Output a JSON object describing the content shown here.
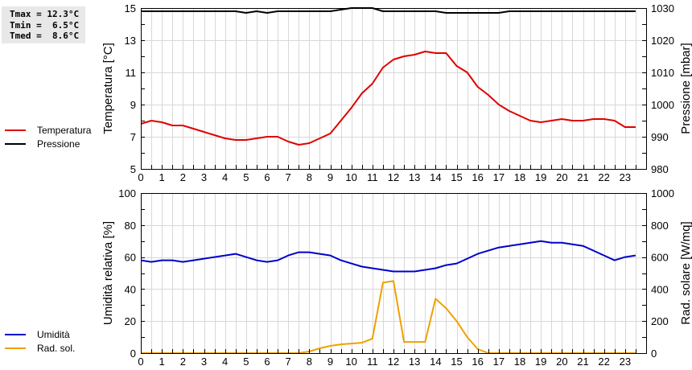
{
  "stats": {
    "tmax_label": "Tmax = 12.3°C",
    "tmin_label": "Tmin =  6.5°C",
    "tmed_label": "Tmed =  8.6°C"
  },
  "legend_top": [
    {
      "label": "Temperatura",
      "color": "#e00000"
    },
    {
      "label": "Pressione",
      "color": "#000000"
    }
  ],
  "legend_bottom": [
    {
      "label": "Umidità",
      "color": "#0000cc"
    },
    {
      "label": "Rad. sol.",
      "color": "#f0a000"
    }
  ],
  "chart_data": [
    {
      "type": "line",
      "title": "",
      "xlabel": "",
      "ylabel": "Temperatura [°C]",
      "y2label": "Pressione [mbar]",
      "xlim": [
        0,
        24
      ],
      "ylim": [
        5,
        15
      ],
      "y2lim": [
        980,
        1030
      ],
      "xticks": [
        "0",
        "1",
        "2",
        "3",
        "4",
        "5",
        "6",
        "7",
        "8",
        "9",
        "10",
        "11",
        "12",
        "13",
        "14",
        "15",
        "16",
        "17",
        "18",
        "19",
        "20",
        "21",
        "22",
        "23"
      ],
      "yticks": [
        "5",
        "7",
        "9",
        "11",
        "13",
        "15"
      ],
      "y2ticks": [
        "980",
        "990",
        "1000",
        "1010",
        "1020",
        "1030"
      ],
      "grid": true,
      "legend_position": "left-outside",
      "series": [
        {
          "name": "Temperatura",
          "axis": "left",
          "color": "#e00000",
          "x": [
            0,
            0.5,
            1,
            1.5,
            2,
            2.5,
            3,
            3.5,
            4,
            4.5,
            5,
            5.5,
            6,
            6.5,
            7,
            7.5,
            8,
            8.5,
            9,
            9.5,
            10,
            10.5,
            11,
            11.5,
            12,
            12.5,
            13,
            13.5,
            14,
            14.5,
            15,
            15.5,
            16,
            16.5,
            17,
            17.5,
            18,
            18.5,
            19,
            19.5,
            20,
            20.5,
            21,
            21.5,
            22,
            22.5,
            23,
            23.5
          ],
          "values": [
            7.8,
            8.0,
            7.9,
            7.7,
            7.7,
            7.5,
            7.3,
            7.1,
            6.9,
            6.8,
            6.8,
            6.9,
            7.0,
            7.0,
            6.7,
            6.5,
            6.6,
            6.9,
            7.2,
            8.0,
            8.8,
            9.7,
            10.3,
            11.3,
            11.8,
            12.0,
            12.1,
            12.3,
            12.2,
            12.2,
            11.4,
            11.0,
            10.1,
            9.6,
            9.0,
            8.6,
            8.3,
            8.0,
            7.9,
            8.0,
            8.1,
            8.0,
            8.0,
            8.1,
            8.1,
            8.0,
            7.6,
            7.6
          ]
        },
        {
          "name": "Pressione",
          "axis": "right",
          "color": "#000000",
          "x": [
            0,
            0.5,
            1,
            1.5,
            2,
            2.5,
            3,
            3.5,
            4,
            4.5,
            5,
            5.5,
            6,
            6.5,
            7,
            7.5,
            8,
            8.5,
            9,
            9.5,
            10,
            10.5,
            11,
            11.5,
            12,
            12.5,
            13,
            13.5,
            14,
            14.5,
            15,
            15.5,
            16,
            16.5,
            17,
            17.5,
            18,
            18.5,
            19,
            19.5,
            20,
            20.5,
            21,
            21.5,
            22,
            22.5,
            23,
            23.5
          ],
          "values": [
            1029,
            1029,
            1029,
            1029,
            1029,
            1029,
            1029,
            1029,
            1029,
            1029,
            1028.5,
            1029,
            1028.5,
            1029,
            1029,
            1029,
            1029,
            1029,
            1029,
            1029.5,
            1030,
            1030,
            1030,
            1029,
            1029,
            1029,
            1029,
            1029,
            1029,
            1028.5,
            1028.5,
            1028.5,
            1028.5,
            1028.5,
            1028.5,
            1029,
            1029,
            1029,
            1029,
            1029,
            1029,
            1029,
            1029,
            1029,
            1029,
            1029,
            1029,
            1029
          ]
        }
      ]
    },
    {
      "type": "line",
      "title": "",
      "xlabel": "",
      "ylabel": "Umidità relativa [%]",
      "y2label": "Rad. solare [W/mq]",
      "xlim": [
        0,
        24
      ],
      "ylim": [
        0,
        100
      ],
      "y2lim": [
        0,
        1000
      ],
      "xticks": [
        "0",
        "1",
        "2",
        "3",
        "4",
        "5",
        "6",
        "7",
        "8",
        "9",
        "10",
        "11",
        "12",
        "13",
        "14",
        "15",
        "16",
        "17",
        "18",
        "19",
        "20",
        "21",
        "22",
        "23"
      ],
      "yticks": [
        "0",
        "20",
        "40",
        "60",
        "80",
        "100"
      ],
      "y2ticks": [
        "0",
        "200",
        "400",
        "600",
        "800",
        "1000"
      ],
      "grid": true,
      "legend_position": "left-outside",
      "series": [
        {
          "name": "Umidità",
          "axis": "left",
          "color": "#0000cc",
          "x": [
            0,
            0.5,
            1,
            1.5,
            2,
            2.5,
            3,
            3.5,
            4,
            4.5,
            5,
            5.5,
            6,
            6.5,
            7,
            7.5,
            8,
            8.5,
            9,
            9.5,
            10,
            10.5,
            11,
            11.5,
            12,
            12.5,
            13,
            13.5,
            14,
            14.5,
            15,
            15.5,
            16,
            16.5,
            17,
            17.5,
            18,
            18.5,
            19,
            19.5,
            20,
            20.5,
            21,
            21.5,
            22,
            22.5,
            23,
            23.5
          ],
          "values": [
            58,
            57,
            58,
            58,
            57,
            58,
            59,
            60,
            61,
            62,
            60,
            58,
            57,
            58,
            61,
            63,
            63,
            62,
            61,
            58,
            56,
            54,
            53,
            52,
            51,
            51,
            51,
            52,
            53,
            55,
            56,
            59,
            62,
            64,
            66,
            67,
            68,
            69,
            70,
            69,
            69,
            68,
            67,
            64,
            61,
            58,
            60,
            61
          ]
        },
        {
          "name": "Rad. sol.",
          "axis": "right",
          "color": "#f0a000",
          "x": [
            0,
            0.5,
            1,
            1.5,
            2,
            2.5,
            3,
            3.5,
            4,
            4.5,
            5,
            5.5,
            6,
            6.5,
            7,
            7.5,
            8,
            8.5,
            9,
            9.5,
            10,
            10.5,
            11,
            11.5,
            12,
            12.5,
            13,
            13.5,
            14,
            14.5,
            15,
            15.5,
            16,
            16.5,
            17,
            17.5,
            18,
            18.5,
            19,
            19.5,
            20,
            20.5,
            21,
            21.5,
            22,
            22.5,
            23,
            23.5
          ],
          "values": [
            0,
            0,
            0,
            0,
            0,
            0,
            0,
            0,
            0,
            0,
            0,
            0,
            0,
            0,
            0,
            0,
            10,
            30,
            45,
            55,
            60,
            65,
            90,
            440,
            450,
            70,
            70,
            70,
            340,
            280,
            200,
            100,
            25,
            0,
            0,
            0,
            0,
            0,
            0,
            0,
            0,
            0,
            0,
            0,
            0,
            0,
            0,
            0
          ]
        }
      ]
    }
  ]
}
